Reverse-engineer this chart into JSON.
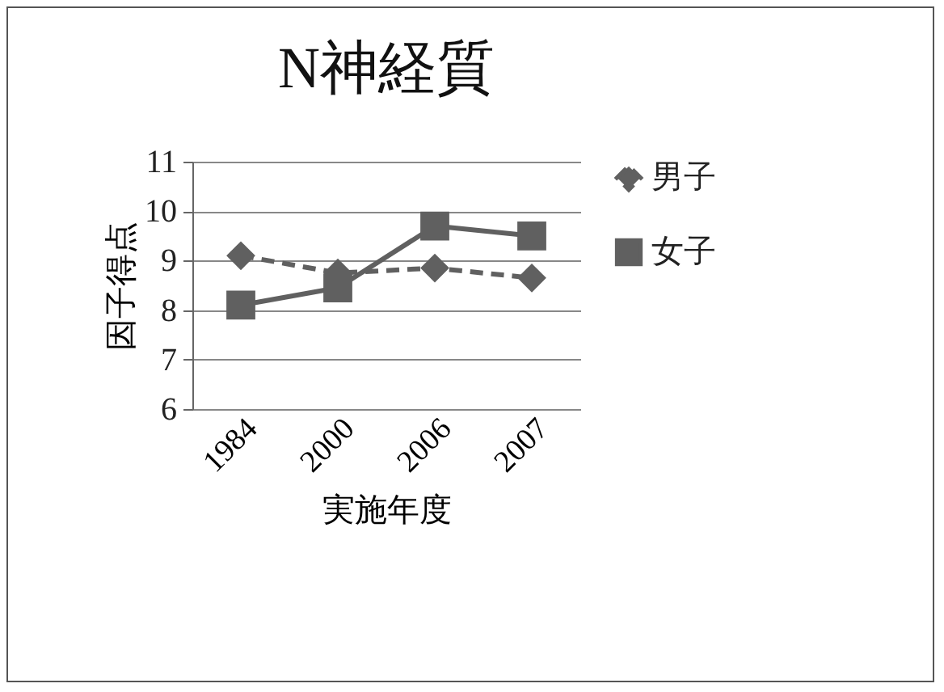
{
  "chart_data": {
    "type": "line",
    "title": "N神経質",
    "xlabel": "実施年度",
    "ylabel": "因子得点",
    "categories": [
      "1984",
      "2000",
      "2006",
      "2007"
    ],
    "series": [
      {
        "name": "男子",
        "color": "#606060",
        "marker": "diamond",
        "line_style": "dashed",
        "values": [
          9.1,
          8.75,
          8.85,
          8.65
        ]
      },
      {
        "name": "女子",
        "color": "#606060",
        "marker": "square",
        "line_style": "solid",
        "values": [
          8.1,
          8.45,
          9.7,
          9.5
        ]
      }
    ],
    "ylim": [
      6,
      11
    ],
    "yticks": [
      6,
      7,
      8,
      9,
      10,
      11
    ],
    "grid": "y",
    "legend": "right"
  }
}
